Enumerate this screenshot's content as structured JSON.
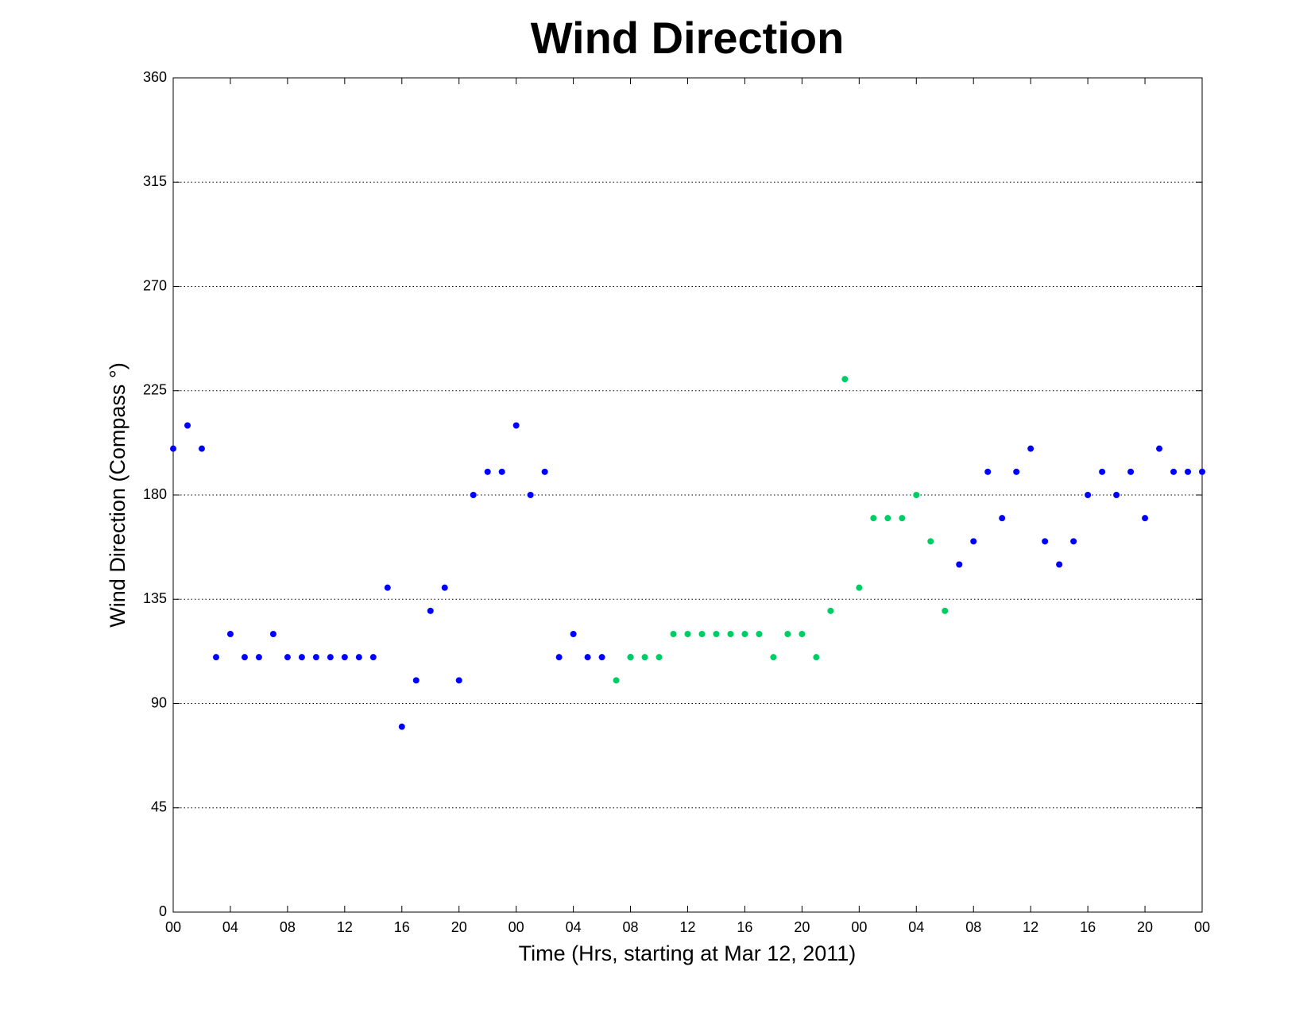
{
  "chart_data": {
    "type": "scatter",
    "title": "Wind Direction",
    "xlabel": "Time (Hrs, starting at Mar 12, 2011)",
    "ylabel": "Wind Direction (Compass °)",
    "x": [
      0,
      1,
      2,
      3,
      4,
      5,
      6,
      7,
      8,
      9,
      10,
      11,
      12,
      13,
      14,
      15,
      16,
      17,
      18,
      19,
      20,
      21,
      22,
      23,
      24,
      25,
      26,
      27,
      28,
      29,
      30,
      31,
      32,
      33,
      34,
      35,
      36,
      37,
      38,
      39,
      40,
      41,
      42,
      43,
      44,
      45,
      46,
      47,
      48,
      49,
      50,
      51,
      52,
      53,
      54,
      55,
      56,
      57,
      58,
      59,
      60,
      61,
      62,
      63,
      64,
      65,
      66,
      67,
      68,
      69,
      70,
      71,
      72
    ],
    "series": [
      {
        "color": "#0000ff",
        "values": [
          200,
          210,
          200,
          110,
          120,
          110,
          110,
          120,
          110,
          110,
          110,
          110,
          110,
          110,
          110,
          140,
          80,
          100,
          130,
          140,
          100,
          180,
          190,
          190,
          210,
          180,
          190,
          110,
          120,
          110,
          110,
          null,
          110,
          null,
          null,
          null,
          null,
          null,
          null,
          null,
          null,
          null,
          null,
          null,
          null,
          null,
          null,
          null,
          null,
          null,
          null,
          null,
          null,
          null,
          null,
          150,
          160,
          190,
          170,
          190,
          200,
          160,
          150,
          160,
          180,
          190,
          180,
          190,
          170,
          200,
          190,
          190,
          190
        ]
      },
      {
        "color": "#00cc66",
        "values": [
          null,
          null,
          null,
          null,
          null,
          null,
          null,
          null,
          null,
          null,
          null,
          null,
          null,
          null,
          null,
          null,
          null,
          null,
          null,
          null,
          null,
          null,
          null,
          null,
          null,
          null,
          null,
          null,
          null,
          null,
          null,
          100,
          110,
          110,
          110,
          120,
          120,
          120,
          120,
          120,
          120,
          120,
          110,
          120,
          120,
          110,
          130,
          230,
          140,
          170,
          170,
          170,
          180,
          160,
          130,
          null,
          null,
          null,
          null,
          null,
          null,
          null,
          null,
          null,
          null,
          null,
          null,
          null,
          null,
          null,
          null,
          null,
          null
        ]
      }
    ],
    "xlim": [
      0,
      72
    ],
    "xticks": [
      {
        "value": 0,
        "label": "00"
      },
      {
        "value": 4,
        "label": "04"
      },
      {
        "value": 8,
        "label": "08"
      },
      {
        "value": 12,
        "label": "12"
      },
      {
        "value": 16,
        "label": "16"
      },
      {
        "value": 20,
        "label": "20"
      },
      {
        "value": 24,
        "label": "00"
      },
      {
        "value": 28,
        "label": "04"
      },
      {
        "value": 32,
        "label": "08"
      },
      {
        "value": 36,
        "label": "12"
      },
      {
        "value": 40,
        "label": "16"
      },
      {
        "value": 44,
        "label": "20"
      },
      {
        "value": 48,
        "label": "00"
      },
      {
        "value": 52,
        "label": "04"
      },
      {
        "value": 56,
        "label": "08"
      },
      {
        "value": 60,
        "label": "12"
      },
      {
        "value": 64,
        "label": "16"
      },
      {
        "value": 68,
        "label": "20"
      },
      {
        "value": 72,
        "label": "00"
      }
    ],
    "ylim": [
      0,
      360
    ],
    "yticks": [
      0,
      45,
      90,
      135,
      180,
      225,
      270,
      315,
      360
    ],
    "grid": "y"
  }
}
